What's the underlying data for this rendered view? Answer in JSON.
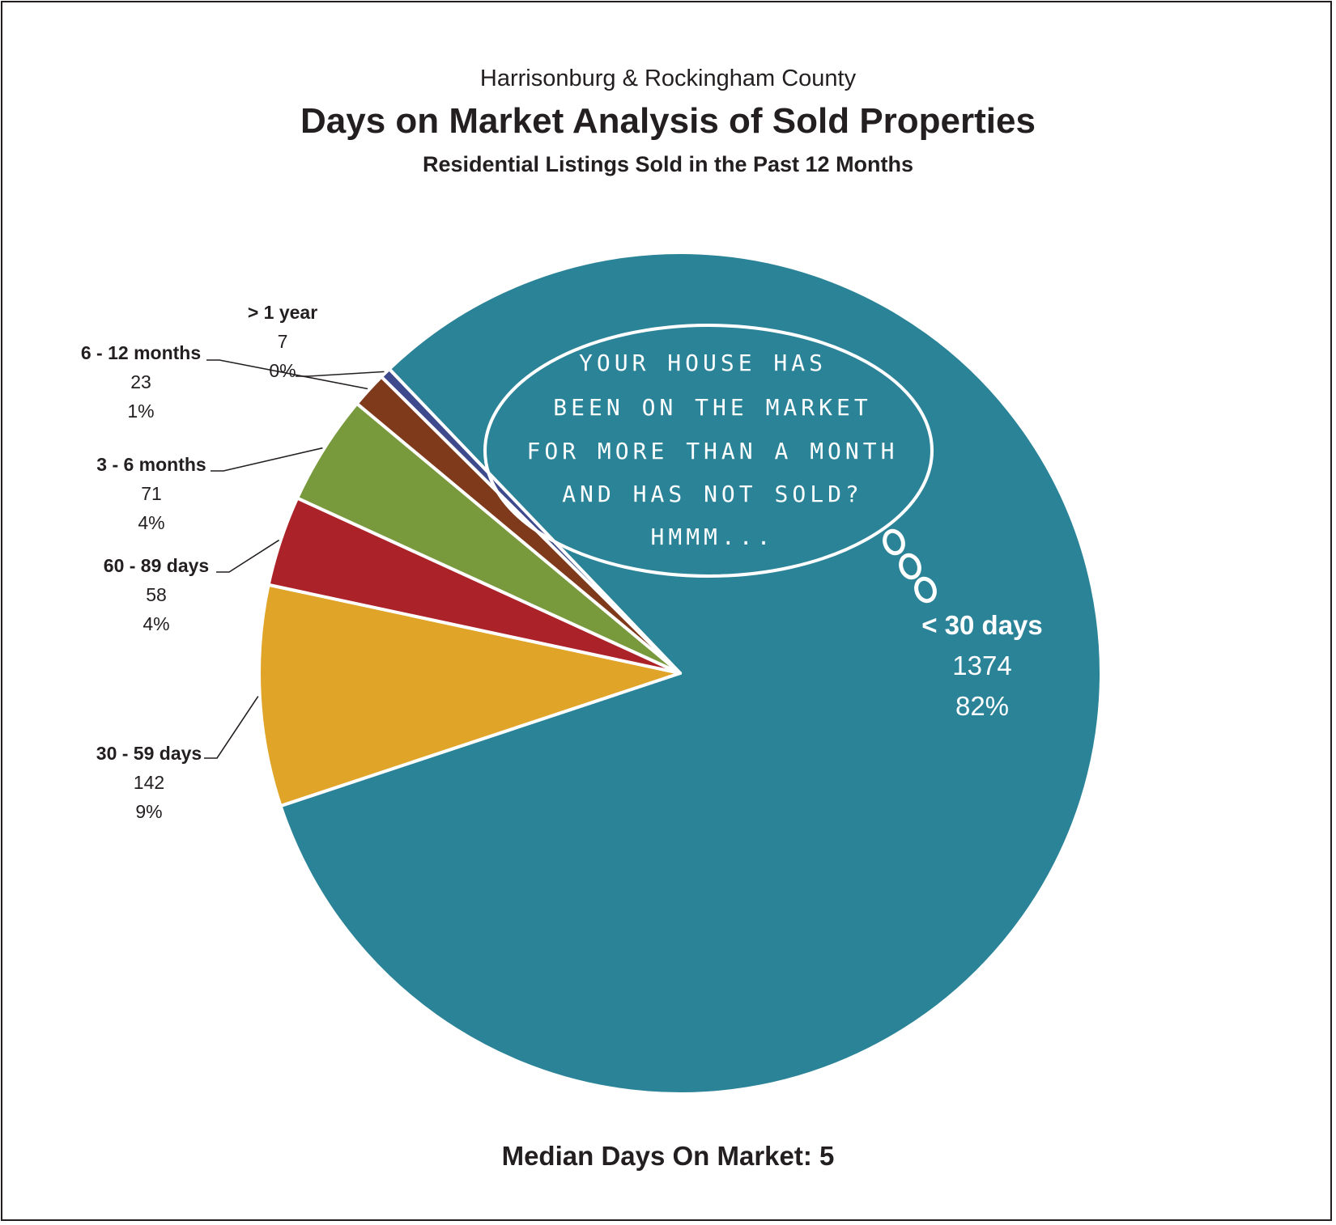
{
  "header": {
    "region": "Harrisonburg & Rockingham County",
    "title": "Days on Market Analysis of Sold Properties",
    "subtitle": "Residential Listings Sold in the Past 12 Months"
  },
  "footer": {
    "median_label": "Median Days On Market:  5"
  },
  "bubble": {
    "lines": [
      "YOUR HOUSE HAS",
      "BEEN ON THE MARKET",
      "FOR MORE THAN A MONTH",
      "AND HAS NOT SOLD?",
      "HMMM..."
    ]
  },
  "chart_data": {
    "type": "pie",
    "title": "Days on Market Analysis of Sold Properties",
    "slices": [
      {
        "name": "< 30 days",
        "value": 1374,
        "percent": "82%",
        "color": "#2b8398"
      },
      {
        "name": "30 - 59 days",
        "value": 142,
        "percent": "9%",
        "color": "#e0a428"
      },
      {
        "name": "60 - 89 days",
        "value": 58,
        "percent": "4%",
        "color": "#ab2229"
      },
      {
        "name": "3 - 6 months",
        "value": 71,
        "percent": "4%",
        "color": "#789a3d"
      },
      {
        "name": "6 - 12 months",
        "value": 23,
        "percent": "1%",
        "color": "#7f3a1c"
      },
      {
        "name": "> 1 year",
        "value": 7,
        "percent": "0%",
        "color": "#3e4a8c"
      }
    ]
  }
}
